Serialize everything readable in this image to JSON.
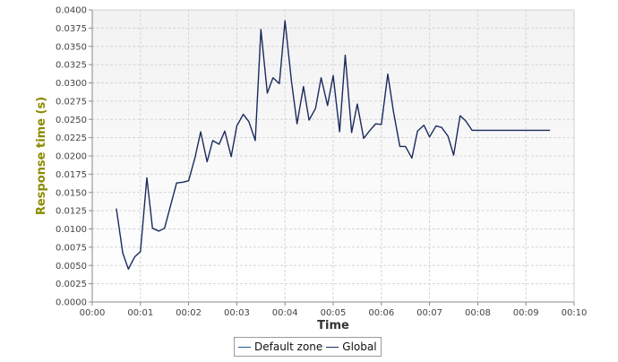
{
  "chart_data": {
    "type": "line",
    "title": "",
    "xlabel": "Time",
    "ylabel": "Response time (s)",
    "xlim": [
      0,
      600
    ],
    "ylim": [
      0,
      0.04
    ],
    "x_ticks": [
      "00:00",
      "00:01",
      "00:02",
      "00:03",
      "00:04",
      "00:05",
      "00:06",
      "00:07",
      "00:08",
      "00:09",
      "00:10"
    ],
    "y_ticks": [
      "0.0000",
      "0.0025",
      "0.0050",
      "0.0075",
      "0.0100",
      "0.0125",
      "0.0150",
      "0.0175",
      "0.0200",
      "0.0225",
      "0.0250",
      "0.0275",
      "0.0300",
      "0.0325",
      "0.0350",
      "0.0375",
      "0.0400"
    ],
    "grid": true,
    "legend_position": "bottom",
    "series": [
      {
        "name": "Default zone",
        "color": "#1f5a92",
        "values": [],
        "x": []
      },
      {
        "name": "Global",
        "color": "#1a2a5e",
        "x": [
          30,
          38,
          45,
          53,
          60,
          68,
          75,
          83,
          90,
          98,
          105,
          113,
          120,
          128,
          135,
          143,
          150,
          158,
          165,
          173,
          180,
          188,
          195,
          203,
          210,
          218,
          225,
          233,
          240,
          248,
          255,
          263,
          270,
          278,
          285,
          293,
          300,
          308,
          315,
          323,
          330,
          338,
          345,
          353,
          360,
          368,
          375,
          383,
          390,
          398,
          405,
          413,
          420,
          428,
          435,
          443,
          450,
          458,
          465,
          473,
          480,
          488,
          495,
          503,
          510,
          518,
          525,
          533,
          540,
          548,
          555,
          563,
          570
        ],
        "values": [
          0.0128,
          0.0067,
          0.0045,
          0.0062,
          0.0069,
          0.017,
          0.0101,
          0.0097,
          0.0101,
          0.0134,
          0.0163,
          0.0164,
          0.0166,
          0.0198,
          0.0233,
          0.0192,
          0.0221,
          0.0216,
          0.0234,
          0.0199,
          0.0241,
          0.0257,
          0.0247,
          0.0221,
          0.0373,
          0.0286,
          0.0307,
          0.0299,
          0.0385,
          0.0303,
          0.0244,
          0.0295,
          0.0249,
          0.0265,
          0.0307,
          0.0269,
          0.031,
          0.0233,
          0.0338,
          0.0232,
          0.0271,
          0.0224,
          0.0234,
          0.0244,
          0.0243,
          0.0312,
          0.0261,
          0.0213,
          0.0213,
          0.0197,
          0.0234,
          0.0242,
          0.0226,
          0.0241,
          0.0239,
          0.0227,
          0.0201,
          0.0255,
          0.0248,
          0.0235,
          0.0235,
          0.0235,
          0.0235,
          0.0235,
          0.0235,
          0.0235,
          0.0235,
          0.0235,
          0.0235,
          0.0235,
          0.0235,
          0.0235,
          0.0235
        ]
      }
    ]
  },
  "colors": {
    "ylabel": "#8a8a00",
    "xlabel": "#333333",
    "plot_bg_top": "#f2f2f2",
    "plot_bg_bottom": "#ffffff",
    "grid": "#d5d5d5"
  }
}
